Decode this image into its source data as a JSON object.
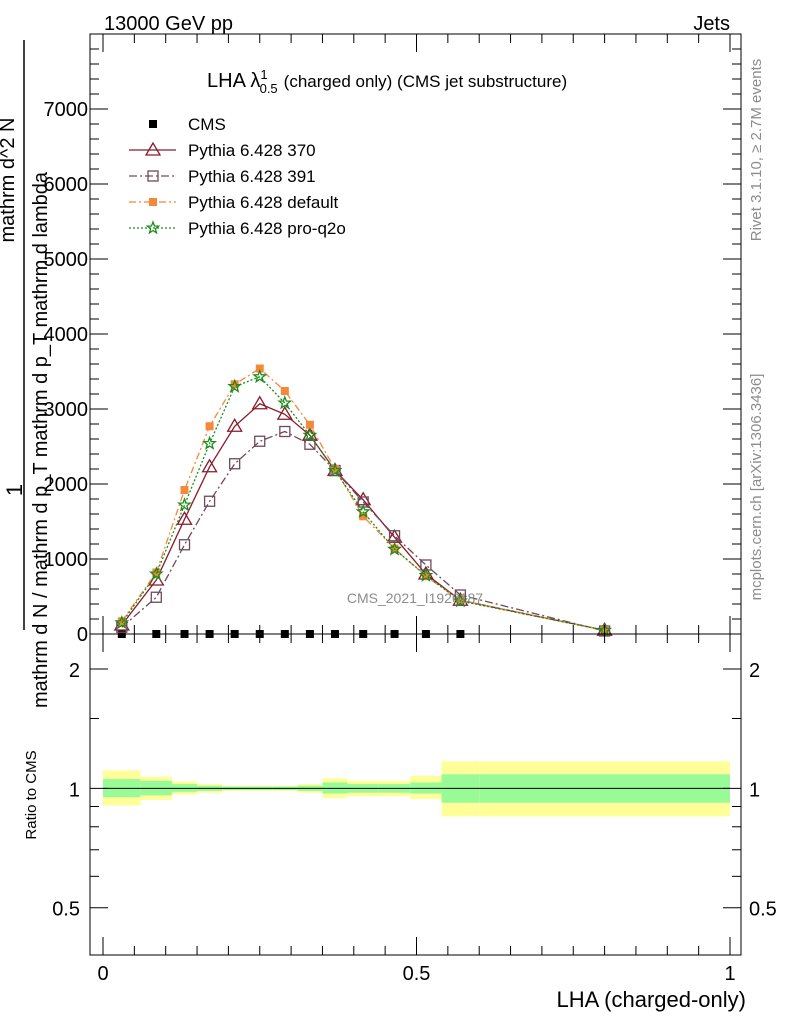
{
  "header": {
    "left": "13000 GeV pp",
    "right": "Jets"
  },
  "side": {
    "rivet": "Rivet 3.1.10, ≥ 2.7M events",
    "mcplots": "mcplots.cern.ch [arXiv:1306.3436]"
  },
  "chart_data": {
    "type": "line",
    "title": "LHA λ",
    "title_sup": "1",
    "title_sub": "0.5",
    "title_rest": "(charged only) (CMS jet substructure)",
    "watermark": "CMS_2021_I1920187",
    "ylabel_lines": [
      "1",
      "mathrm d N / mathrm d p_T mathrm d p_T mathrm d lambda",
      "mathrm d^2 N"
    ],
    "xlabel": "LHA (charged-only)",
    "xlim": [
      0,
      1
    ],
    "ylim": [
      0,
      8000
    ],
    "x_ticks": [
      0,
      0.5,
      1
    ],
    "x_tick_labels": [
      "0",
      "0.5",
      "1"
    ],
    "y_ticks": [
      0,
      1000,
      2000,
      3000,
      4000,
      5000,
      6000,
      7000
    ],
    "y_tick_labels": [
      "0",
      "1000",
      "2000",
      "3000",
      "4000",
      "5000",
      "6000",
      "7000"
    ],
    "x": [
      0.03,
      0.085,
      0.13,
      0.17,
      0.21,
      0.25,
      0.29,
      0.33,
      0.37,
      0.415,
      0.465,
      0.515,
      0.57,
      0.8
    ],
    "series": [
      {
        "name": "CMS",
        "color": "#000000",
        "marker": "square-filled",
        "values": [
          0,
          0,
          0,
          0,
          0,
          0,
          0,
          0,
          0,
          0,
          0,
          0,
          0,
          null
        ]
      },
      {
        "name": "Pythia 6.428 370",
        "color": "#8b1a2b",
        "marker": "triangle-open",
        "dash": "solid",
        "values": [
          120,
          720,
          1530,
          2230,
          2770,
          3070,
          2930,
          2650,
          2180,
          1790,
          1290,
          800,
          450,
          50
        ]
      },
      {
        "name": "Pythia 6.428 391",
        "color": "#6e4a5a",
        "marker": "square-open",
        "dash": "dashdot",
        "values": [
          90,
          490,
          1190,
          1770,
          2270,
          2570,
          2700,
          2530,
          2180,
          1760,
          1310,
          920,
          520,
          40
        ]
      },
      {
        "name": "Pythia 6.428 default",
        "color": "#f5883a",
        "marker": "square-filled",
        "dash": "dashdot-orange",
        "values": [
          170,
          820,
          1920,
          2770,
          3330,
          3540,
          3240,
          2790,
          2200,
          1570,
          1140,
          770,
          450,
          50
        ]
      },
      {
        "name": "Pythia 6.428 pro-q2o",
        "color": "#1a8c1a",
        "marker": "star-open",
        "dash": "dotted",
        "values": [
          150,
          800,
          1720,
          2540,
          3300,
          3430,
          3080,
          2650,
          2180,
          1630,
          1130,
          780,
          440,
          50
        ]
      }
    ],
    "ratio": {
      "ylabel": "Ratio to CMS",
      "y_tick_labels": [
        "0.5",
        "1",
        "2"
      ],
      "y_ticks": [
        0.5,
        1,
        2
      ],
      "ylim": [
        0.38,
        2.45
      ],
      "scale": "log",
      "bins": [
        0,
        0.06,
        0.11,
        0.15,
        0.19,
        0.23,
        0.27,
        0.31,
        0.35,
        0.39,
        0.44,
        0.49,
        0.54,
        0.6,
        1.0
      ],
      "band_inner_low": [
        0.95,
        0.96,
        0.98,
        0.985,
        0.99,
        0.99,
        0.99,
        0.985,
        0.97,
        0.975,
        0.975,
        0.97,
        0.92,
        0.92
      ],
      "band_inner_high": [
        1.055,
        1.045,
        1.025,
        1.015,
        1.01,
        1.01,
        1.01,
        1.015,
        1.035,
        1.025,
        1.025,
        1.035,
        1.085,
        1.085
      ],
      "band_outer_low": [
        0.905,
        0.935,
        0.965,
        0.975,
        0.985,
        0.985,
        0.985,
        0.975,
        0.945,
        0.955,
        0.955,
        0.94,
        0.85,
        0.85
      ],
      "band_outer_high": [
        1.11,
        1.07,
        1.04,
        1.025,
        1.015,
        1.015,
        1.015,
        1.025,
        1.06,
        1.045,
        1.045,
        1.075,
        1.17,
        1.17
      ],
      "band_inner_color": "#98fb98",
      "band_outer_color": "#ffff99"
    }
  }
}
